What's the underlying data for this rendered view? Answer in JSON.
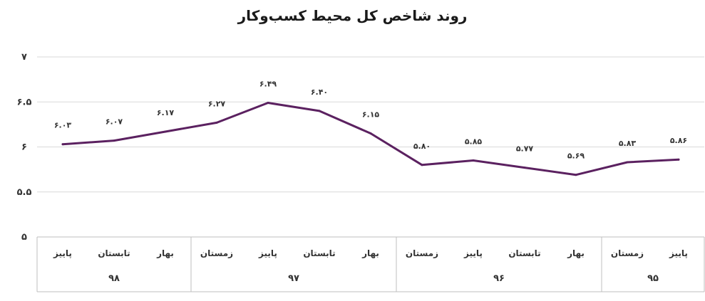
{
  "chart_data": {
    "type": "line",
    "title": "روند شاخص کل محیط کسب‌وکار",
    "ylim": [
      5,
      7
    ],
    "y_ticks": [
      "۵",
      "۵.۵",
      "۶",
      "۶.۵",
      "۷"
    ],
    "y_tick_values": [
      5,
      5.5,
      6,
      6.5,
      7
    ],
    "categories": [
      "پاییز",
      "زمستان",
      "بهار",
      "تابستان",
      "پاییز",
      "زمستان",
      "بهار",
      "تابستان",
      "پاییز",
      "زمستان",
      "بهار",
      "تابستان",
      "پاییز"
    ],
    "values": [
      5.86,
      5.83,
      5.69,
      5.77,
      5.85,
      5.8,
      6.15,
      6.4,
      6.49,
      6.27,
      6.17,
      6.07,
      6.03
    ],
    "value_labels": [
      "۵.۸۶",
      "۵.۸۳",
      "۵.۶۹",
      "۵.۷۷",
      "۵.۸۵",
      "۵.۸۰",
      "۶.۱۵",
      "۶.۴۰",
      "۶.۴۹",
      "۶.۲۷",
      "۶.۱۷",
      "۶.۰۷",
      "۶.۰۳"
    ],
    "year_groups": [
      {
        "label": "۹۵",
        "count": 2
      },
      {
        "label": "۹۶",
        "count": 4
      },
      {
        "label": "۹۷",
        "count": 4
      },
      {
        "label": "۹۸",
        "count": 3
      }
    ],
    "x_direction": "rtl",
    "line_color": "#5b2160",
    "grid": true,
    "legend": "none"
  }
}
